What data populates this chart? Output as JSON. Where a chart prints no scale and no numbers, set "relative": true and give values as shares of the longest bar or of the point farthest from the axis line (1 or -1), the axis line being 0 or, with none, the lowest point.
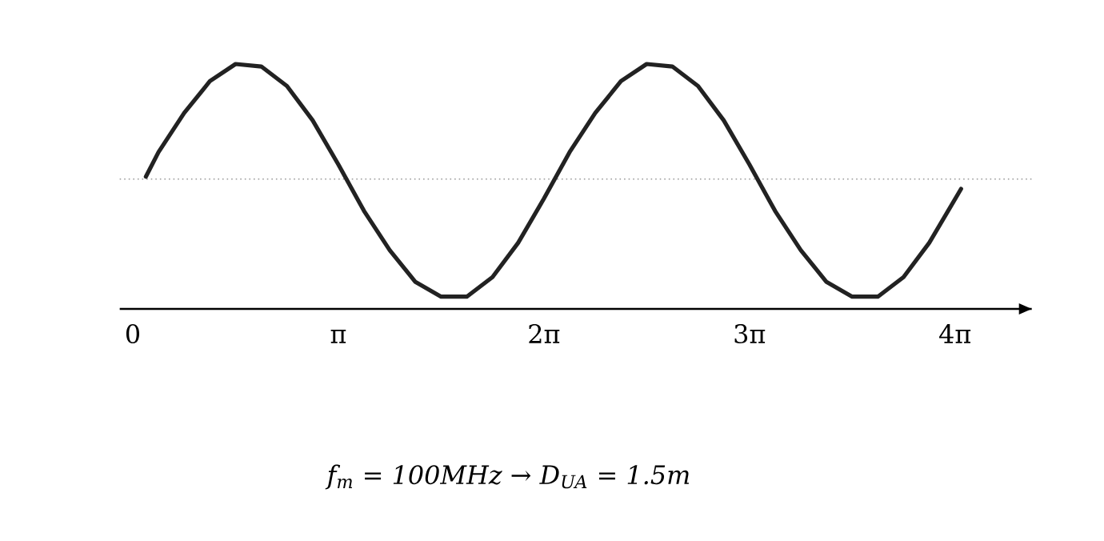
{
  "chart_data": {
    "type": "line",
    "relative": true,
    "x": [
      0.2,
      0.3927,
      0.7854,
      1.1781,
      1.5708,
      1.9635,
      2.3562,
      2.7489,
      3.1416,
      3.5343,
      3.927,
      4.3197,
      4.7124,
      5.1051,
      5.4978,
      5.8905,
      6.2832,
      6.6759,
      7.0686,
      7.4613,
      7.854,
      8.2467,
      8.6394,
      9.0321,
      9.4248,
      9.8175,
      10.2102,
      10.6029,
      10.9956,
      11.3883,
      11.781,
      12.1737,
      12.66
    ],
    "series": [
      {
        "color": "#222222",
        "line_style": "solid",
        "values": [
          0.54,
          0.64,
          0.8,
          0.93,
          1.0,
          0.99,
          0.91,
          0.77,
          0.59,
          0.4,
          0.24,
          0.11,
          0.05,
          0.05,
          0.13,
          0.27,
          0.45,
          0.64,
          0.8,
          0.93,
          1.0,
          0.99,
          0.91,
          0.77,
          0.59,
          0.4,
          0.24,
          0.11,
          0.05,
          0.05,
          0.13,
          0.27,
          0.49
        ]
      }
    ],
    "xlim": [
      -0.2,
      13.74
    ],
    "xticks": [
      0,
      {
        "value": 3.1416,
        "label": "π"
      },
      {
        "value": 6.2832,
        "label": "2π"
      },
      {
        "value": 9.4248,
        "label": "3π"
      },
      {
        "value": 12.5664,
        "label": "4π"
      }
    ],
    "ref_lines": [
      {
        "axis": "y",
        "value": 0.53,
        "color": "#999999",
        "line_style": "dotted"
      }
    ],
    "annotations": [
      "f$_{m}$ = 100MHz → D$_{UA}$ = 1.5m"
    ]
  }
}
